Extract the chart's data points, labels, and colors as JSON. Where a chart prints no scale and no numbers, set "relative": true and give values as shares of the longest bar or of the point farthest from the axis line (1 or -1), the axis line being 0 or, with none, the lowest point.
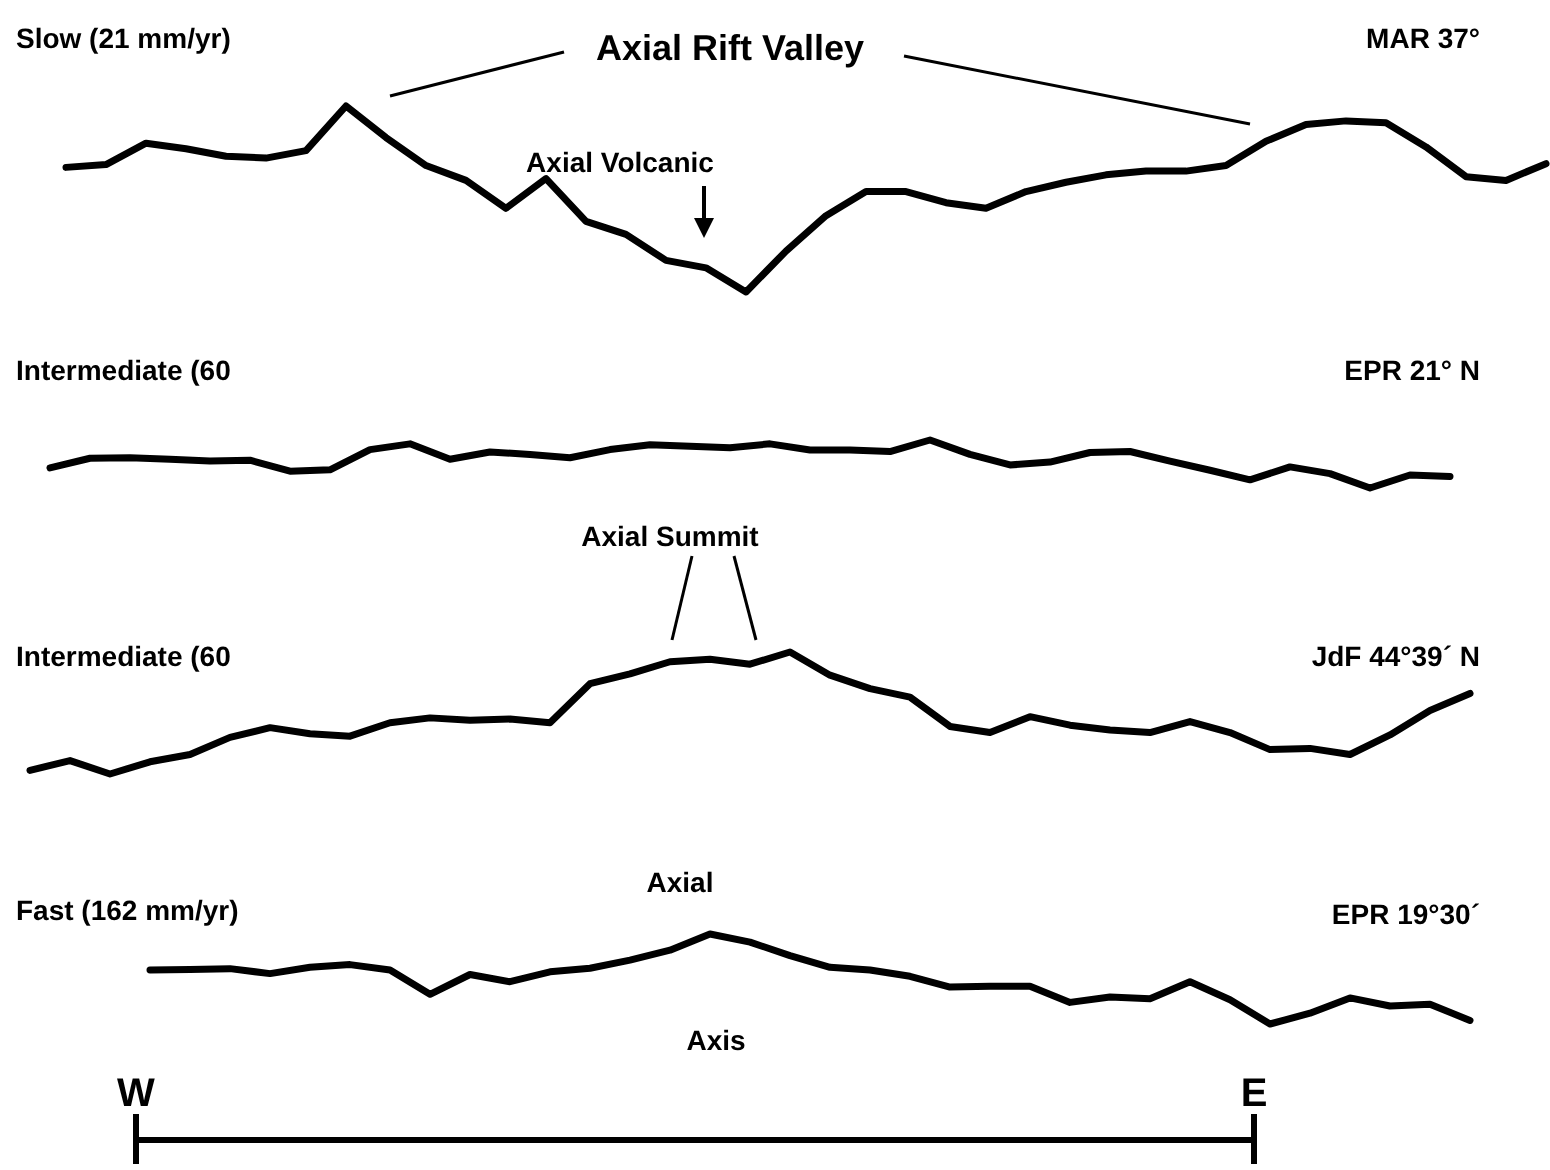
{
  "chart_data": [
    {
      "type": "line",
      "title": "Slow (21 mm/yr)",
      "subtitle": "MAR 37°",
      "annotations": [
        "Axial Rift Valley",
        "Axial Volcanic"
      ],
      "relative": true,
      "categories": [
        null,
        null,
        null,
        null,
        null,
        null,
        null,
        null,
        null,
        null,
        null,
        null,
        null,
        null,
        null,
        null,
        null,
        null,
        null,
        null,
        null,
        null,
        null,
        null,
        null,
        null,
        null,
        null,
        null,
        null,
        null,
        null,
        null,
        null,
        null,
        null,
        null,
        null
      ],
      "series": [
        {
          "color": "#000000",
          "values": [
            0.67,
            0.685,
            0.8,
            0.77,
            0.73,
            0.72,
            0.76,
            1,
            0.83,
            0.68,
            0.6,
            0.45,
            0.61,
            0.38,
            0.31,
            0.17,
            0.13,
            0,
            0.22,
            0.41,
            0.54,
            0.54,
            0.48,
            0.45,
            0.54,
            0.59,
            0.63,
            0.65,
            0.65,
            0.68,
            0.81,
            0.9,
            0.92,
            0.91,
            0.78,
            0.62,
            0.6,
            0.69
          ]
        }
      ]
    },
    {
      "type": "line",
      "title": "Intermediate (60",
      "subtitle": "EPR 21° N",
      "relative": true,
      "categories": [
        null,
        null,
        null,
        null,
        null,
        null,
        null,
        null,
        null,
        null,
        null,
        null,
        null,
        null,
        null,
        null,
        null,
        null,
        null,
        null,
        null,
        null,
        null,
        null,
        null,
        null,
        null,
        null,
        null,
        null,
        null,
        null,
        null,
        null,
        null,
        null
      ],
      "series": [
        {
          "color": "#000000",
          "values": [
            0.42,
            0.62,
            0.63,
            0.6,
            0.56,
            0.58,
            0.35,
            0.38,
            0.8,
            0.92,
            0.6,
            0.75,
            0.7,
            0.63,
            0.8,
            0.9,
            0.87,
            0.84,
            0.92,
            0.79,
            0.79,
            0.76,
            1,
            0.7,
            0.48,
            0.54,
            0.74,
            0.76,
            0.56,
            0.37,
            0.17,
            0.44,
            0.3,
            0,
            0.27,
            0.24
          ]
        }
      ]
    },
    {
      "type": "line",
      "title": "Intermediate (60",
      "subtitle": "JdF 44°39´ N",
      "annotations": [
        "Axial Summit"
      ],
      "relative": true,
      "categories": [
        null,
        null,
        null,
        null,
        null,
        null,
        null,
        null,
        null,
        null,
        null,
        null,
        null,
        null,
        null,
        null,
        null,
        null,
        null,
        null,
        null,
        null,
        null,
        null,
        null,
        null,
        null,
        null,
        null,
        null,
        null,
        null,
        null,
        null,
        null,
        null,
        null
      ],
      "series": [
        {
          "color": "#000000",
          "values": [
            0.03,
            0.11,
            0,
            0.1,
            0.16,
            0.3,
            0.38,
            0.33,
            0.31,
            0.42,
            0.46,
            0.44,
            0.45,
            0.42,
            0.74,
            0.82,
            0.92,
            0.94,
            0.9,
            1,
            0.81,
            0.7,
            0.63,
            0.39,
            0.34,
            0.47,
            0.4,
            0.36,
            0.34,
            0.43,
            0.34,
            0.2,
            0.21,
            0.16,
            0.32,
            0.52,
            0.66
          ]
        }
      ]
    },
    {
      "type": "line",
      "title": "Fast (162 mm/yr)",
      "subtitle": "EPR 19°30´",
      "annotations": [
        "Axial",
        "Axis",
        "W",
        "E"
      ],
      "relative": true,
      "categories": [
        null,
        null,
        null,
        null,
        null,
        null,
        null,
        null,
        null,
        null,
        null,
        null,
        null,
        null,
        null,
        null,
        null,
        null,
        null,
        null,
        null,
        null,
        null,
        null,
        null,
        null,
        null,
        null,
        null,
        null,
        null,
        null,
        null,
        null
      ],
      "series": [
        {
          "color": "#000000",
          "values": [
            0.6,
            0.605,
            0.615,
            0.56,
            0.63,
            0.66,
            0.6,
            0.33,
            0.55,
            0.47,
            0.58,
            0.62,
            0.71,
            0.82,
            1,
            0.91,
            0.76,
            0.63,
            0.6,
            0.53,
            0.41,
            0.42,
            0.42,
            0.24,
            0.3,
            0.28,
            0.47,
            0.27,
            0,
            0.12,
            0.29,
            0.2,
            0.22,
            0.04
          ]
        }
      ]
    }
  ]
}
